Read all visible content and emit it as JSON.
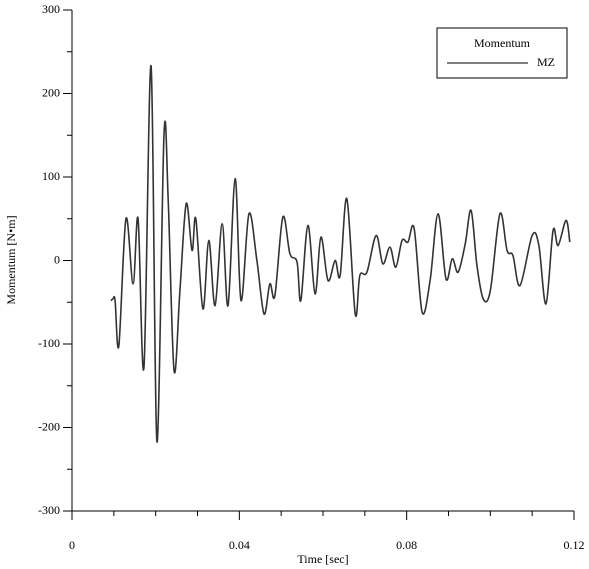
{
  "chart_data": {
    "type": "line",
    "x_label": "Time [sec]",
    "y_label": "Momentum [N•m]",
    "legend_title": "Momentum",
    "legend_position": "top-right",
    "xlim": [
      0,
      0.12
    ],
    "xticks": [
      0,
      0.04,
      0.08,
      0.12
    ],
    "x_minor_ticks": [
      0.01,
      0.02,
      0.03,
      0.05,
      0.06,
      0.07,
      0.09,
      0.1,
      0.11
    ],
    "ylim": [
      -300,
      300
    ],
    "yticks": [
      -300,
      -200,
      -100,
      0,
      100,
      200,
      300
    ],
    "y_minor_ticks": [
      -250,
      -150,
      -50,
      50,
      150,
      250
    ],
    "x": [
      0.0093,
      0.0098,
      0.0103,
      0.0112,
      0.0129,
      0.0146,
      0.0158,
      0.0172,
      0.0189,
      0.0203,
      0.022,
      0.023,
      0.0244,
      0.0258,
      0.0273,
      0.0287,
      0.0296,
      0.0313,
      0.0327,
      0.0342,
      0.0359,
      0.0373,
      0.039,
      0.0404,
      0.0423,
      0.0442,
      0.0459,
      0.0473,
      0.0485,
      0.0504,
      0.0521,
      0.0538,
      0.0547,
      0.0564,
      0.0581,
      0.0595,
      0.0612,
      0.0629,
      0.0641,
      0.0657,
      0.0677,
      0.0688,
      0.0705,
      0.0727,
      0.0743,
      0.076,
      0.0774,
      0.0789,
      0.0803,
      0.0818,
      0.0837,
      0.0856,
      0.0875,
      0.0894,
      0.0909,
      0.0923,
      0.094,
      0.0954,
      0.0968,
      0.0983,
      0.1,
      0.1023,
      0.104,
      0.1054,
      0.1071,
      0.11,
      0.1116,
      0.1133,
      0.115,
      0.1162,
      0.1181,
      0.119
    ],
    "series": [
      {
        "name": "MZ",
        "color": "#333333",
        "values": [
          -48,
          -46,
          -48,
          -102,
          50,
          -28,
          50,
          -128,
          233,
          -217,
          152,
          72,
          -132,
          -36,
          68,
          12,
          50,
          -58,
          24,
          -54,
          44,
          -54,
          98,
          -48,
          56,
          0,
          -64,
          -28,
          -42,
          52,
          8,
          -2,
          -48,
          42,
          -40,
          28,
          -24,
          0,
          -18,
          74,
          -64,
          -18,
          -14,
          30,
          -4,
          16,
          -8,
          24,
          22,
          38,
          -62,
          -24,
          56,
          -22,
          2,
          -14,
          20,
          60,
          -6,
          -46,
          -36,
          56,
          12,
          6,
          -30,
          30,
          18,
          -52,
          36,
          18,
          48,
          22
        ]
      }
    ]
  }
}
